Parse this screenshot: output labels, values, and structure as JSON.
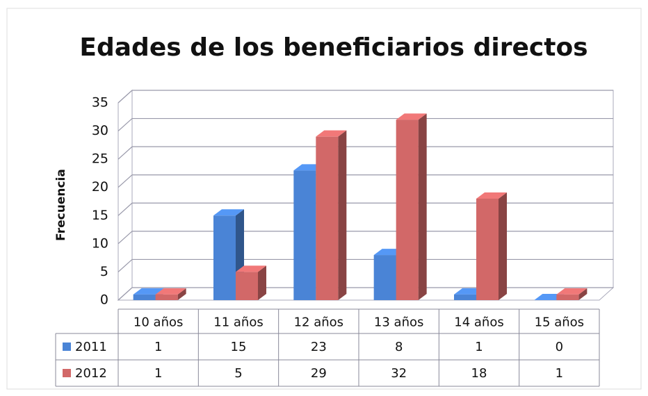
{
  "chart_data": {
    "type": "bar3d",
    "title": "Edades de los beneficiarios directos",
    "y_label": "Frecuencia",
    "categories": [
      "10 años",
      "11 años",
      "12 años",
      "13 años",
      "14 años",
      "15 años"
    ],
    "series": [
      {
        "name": "2011",
        "color": "#4a84d6",
        "values": [
          1,
          15,
          23,
          8,
          1,
          0
        ]
      },
      {
        "name": "2012",
        "color": "#d26868",
        "values": [
          1,
          5,
          29,
          32,
          18,
          1
        ]
      }
    ],
    "ylim": [
      0,
      35
    ],
    "yticks": [
      0,
      5,
      10,
      15,
      20,
      25,
      30,
      35
    ],
    "grid": true,
    "data_table": true
  }
}
